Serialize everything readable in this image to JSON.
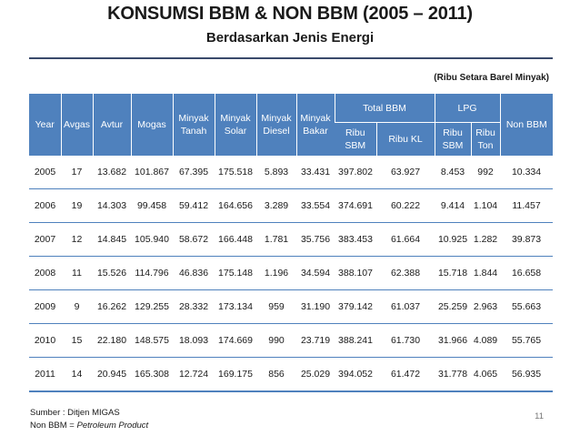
{
  "title": "KONSUMSI BBM & NON BBM (2005 – 2011)",
  "subtitle": "Berdasarkan Jenis Energi",
  "unit_note": "(Ribu Setara Barel Minyak)",
  "table": {
    "headers": {
      "year": "Year",
      "avgas": "Avgas",
      "avtur": "Avtur",
      "mogas": "Mogas",
      "minyak_tanah": "Minyak Tanah",
      "minyak_solar": "Minyak Solar",
      "minyak_diesel": "Minyak Diesel",
      "minyak_bakar": "Minyak Bakar",
      "total_bbm": "Total BBM",
      "total_bbm_sbm": "Ribu SBM",
      "total_bbm_kl": "Ribu KL",
      "lpg": "LPG",
      "lpg_sbm": "Ribu SBM",
      "lpg_ton": "Ribu Ton",
      "non_bbm": "Non BBM"
    },
    "rows": [
      [
        "2005",
        "17",
        "13.682",
        "101.867",
        "67.395",
        "175.518",
        "5.893",
        "33.431",
        "397.802",
        "63.927",
        "8.453",
        "992",
        "10.334"
      ],
      [
        "2006",
        "19",
        "14.303",
        "99.458",
        "59.412",
        "164.656",
        "3.289",
        "33.554",
        "374.691",
        "60.222",
        "9.414",
        "1.104",
        "11.457"
      ],
      [
        "2007",
        "12",
        "14.845",
        "105.940",
        "58.672",
        "166.448",
        "1.781",
        "35.756",
        "383.453",
        "61.664",
        "10.925",
        "1.282",
        "39.873"
      ],
      [
        "2008",
        "11",
        "15.526",
        "114.796",
        "46.836",
        "175.148",
        "1.196",
        "34.594",
        "388.107",
        "62.388",
        "15.718",
        "1.844",
        "16.658"
      ],
      [
        "2009",
        "9",
        "16.262",
        "129.255",
        "28.332",
        "173.134",
        "959",
        "31.190",
        "379.142",
        "61.037",
        "25.259",
        "2.963",
        "55.663"
      ],
      [
        "2010",
        "15",
        "22.180",
        "148.575",
        "18.093",
        "174.669",
        "990",
        "23.719",
        "388.241",
        "61.730",
        "31.966",
        "4.089",
        "55.765"
      ],
      [
        "2011",
        "14",
        "20.945",
        "165.308",
        "12.724",
        "169.175",
        "856",
        "25.029",
        "394.052",
        "61.472",
        "31.778",
        "4.065",
        "56.935"
      ]
    ]
  },
  "footer": {
    "source": "Sumber : Ditjen MIGAS",
    "note_prefix": "Non BBM = ",
    "note_italic": "Petroleum Product"
  },
  "page_number": "11"
}
